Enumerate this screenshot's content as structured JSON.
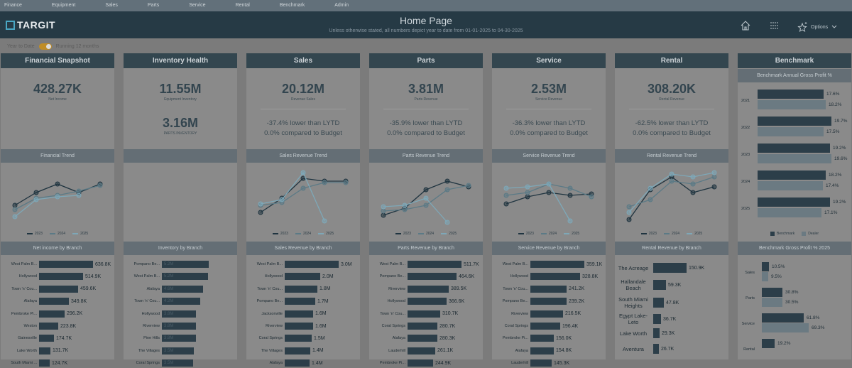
{
  "nav": [
    "Finance",
    "Equipment",
    "Sales",
    "Parts",
    "Service",
    "Rental",
    "Benchmark",
    "Admin"
  ],
  "header": {
    "logo": "TARGIT",
    "title": "Home Page",
    "subtitle": "Unless otherwise stated, all numbers depict year to date from 01-01-2025 to 04-30-2025",
    "options": "Options"
  },
  "mode": {
    "left": "Year to Date",
    "right": "Running 12 months"
  },
  "legend": [
    "2023",
    "2024",
    "2025"
  ],
  "columns": [
    {
      "title": "Financial Snapshot",
      "kpi": "428.27K",
      "kpi_label": "Net Income",
      "trend_title": "Financial Trend",
      "branch_title": "Net income by Branch",
      "branches": [
        [
          "West Palm B...",
          "636.8K",
          1.0
        ],
        [
          "Hollywood",
          "514.9K",
          0.81
        ],
        [
          "Town 'n' Cou...",
          "459.6K",
          0.72
        ],
        [
          "Alafaya",
          "349.8K",
          0.55
        ],
        [
          "Pembroke Pi...",
          "296.2K",
          0.47
        ],
        [
          "Weston",
          "223.8K",
          0.35
        ],
        [
          "Gainesville",
          "174.7K",
          0.27
        ],
        [
          "Lake Worth",
          "131.7K",
          0.21
        ],
        [
          "South Miami ...",
          "124.7K",
          0.2
        ]
      ]
    },
    {
      "title": "Inventory Health",
      "kpi": "11.55M",
      "kpi_label": "Equipment Inventory",
      "kpi2": "3.16M",
      "kpi2_label": "PARTS INVENTORY",
      "branch_title": "Inventory by Branch",
      "branches": [
        [
          "Pompano Be...",
          "5.2M",
          1.0
        ],
        [
          "West Palm B...",
          "5.2M",
          0.99
        ],
        [
          "Alafaya",
          "4.6M",
          0.88
        ],
        [
          "Town 'n' Cou...",
          "4.2M",
          0.82
        ],
        [
          "Hollywood",
          "3.8M",
          0.72
        ],
        [
          "Riverview",
          "3.8M",
          0.72
        ],
        [
          "Pine Hills",
          "3.8M",
          0.72
        ],
        [
          "The Villages",
          "3.5M",
          0.68
        ],
        [
          "Coral Springs",
          "3.5M",
          0.67
        ]
      ]
    },
    {
      "title": "Sales",
      "kpi": "20.12M",
      "kpi_label": "Revenue Sales",
      "cmp1": "-37.4% lower than LYTD",
      "cmp2": "0.0% compared to Budget",
      "trend_title": "Sales Revenue Trend",
      "branch_title": "Sales Revenue by Branch",
      "branches": [
        [
          "West Palm B...",
          "3.0M",
          1.0
        ],
        [
          "Hollywood",
          "2.0M",
          0.66
        ],
        [
          "Town 'n' Cou...",
          "1.8M",
          0.6
        ],
        [
          "Pompano Be...",
          "1.7M",
          0.57
        ],
        [
          "Jacksonville",
          "1.6M",
          0.53
        ],
        [
          "Riverview",
          "1.6M",
          0.52
        ],
        [
          "Coral Springs",
          "1.5M",
          0.5
        ],
        [
          "The Villages",
          "1.4M",
          0.47
        ],
        [
          "Alafaya",
          "1.4M",
          0.46
        ]
      ]
    },
    {
      "title": "Parts",
      "kpi": "3.81M",
      "kpi_label": "Parts Revenue",
      "cmp1": "-35.9% lower than LYTD",
      "cmp2": "0.0% compared to Budget",
      "trend_title": "Parts Revenue Trend",
      "branch_title": "Parts Revenue by Branch",
      "branches": [
        [
          "West Palm B...",
          "511.7K",
          1.0
        ],
        [
          "Pompano Be...",
          "464.6K",
          0.91
        ],
        [
          "Riverview",
          "389.5K",
          0.76
        ],
        [
          "Hollywood",
          "366.6K",
          0.72
        ],
        [
          "Town 'n' Cou...",
          "310.7K",
          0.61
        ],
        [
          "Coral Springs",
          "280.7K",
          0.55
        ],
        [
          "Alafaya",
          "280.3K",
          0.55
        ],
        [
          "Lauderhill",
          "261.1K",
          0.51
        ],
        [
          "Pembroke Pi...",
          "244.9K",
          0.48
        ]
      ]
    },
    {
      "title": "Service",
      "kpi": "2.53M",
      "kpi_label": "Service Revenue",
      "cmp1": "-36.3% lower than LYTD",
      "cmp2": "0.0% compared to Budget",
      "trend_title": "Service Revenue Trend",
      "branch_title": "Service Revenue by Branch",
      "branches": [
        [
          "West Palm B...",
          "359.1K",
          1.0
        ],
        [
          "Hollywood",
          "328.8K",
          0.92
        ],
        [
          "Town 'n' Cou...",
          "241.2K",
          0.67
        ],
        [
          "Pompano Be...",
          "239.2K",
          0.67
        ],
        [
          "Riverview",
          "216.5K",
          0.6
        ],
        [
          "Coral Springs",
          "196.4K",
          0.55
        ],
        [
          "Pembroke Pi...",
          "156.0K",
          0.43
        ],
        [
          "Alafaya",
          "154.8K",
          0.43
        ],
        [
          "Lauderhill",
          "145.3K",
          0.4
        ]
      ]
    },
    {
      "title": "Rental",
      "kpi": "308.20K",
      "kpi_label": "Rental Revenue",
      "cmp1": "-62.5% lower than LYTD",
      "cmp2": "0.0% compared to Budget",
      "trend_title": "Rental Revenue Trend",
      "branch_title": "Rental Revenue by Branch",
      "branches": [
        [
          "The Acreage",
          "150.9K",
          1.0
        ],
        [
          "Hallandale Beach",
          "59.3K",
          0.39
        ],
        [
          "South Miami Heights",
          "47.8K",
          0.32
        ],
        [
          "Egypt Lake-Leto",
          "36.7K",
          0.24
        ],
        [
          "Lake Worth",
          "29.3K",
          0.19
        ],
        [
          "Aventura",
          "26.7K",
          0.18
        ]
      ]
    }
  ],
  "benchmark": {
    "title": "Benchmark",
    "annual_title": "Benchmark Annual Gross Profit %",
    "years": [
      [
        "2021",
        "17.6%",
        17.6,
        "18.2%",
        18.2
      ],
      [
        "2022",
        "19.7%",
        19.7,
        "17.5%",
        17.5
      ],
      [
        "2023",
        "19.2%",
        19.2,
        "19.6%",
        19.6
      ],
      [
        "2024",
        "18.2%",
        18.2,
        "17.4%",
        17.4
      ],
      [
        "2025",
        "19.2%",
        19.2,
        "17.1%",
        17.1
      ]
    ],
    "legend": [
      "Benchmark",
      "Dealer"
    ],
    "gp_title": "Benchmark Gross Profit % 2025",
    "gp": [
      [
        "Sales",
        "10.5%",
        10.5,
        "9.5%",
        9.5
      ],
      [
        "Parts",
        "30.8%",
        30.8,
        "30.5%",
        30.5
      ],
      [
        "Service",
        "61.8%",
        61.8,
        "69.3%",
        69.3
      ],
      [
        "Rental",
        "19.2%",
        19.2,
        "",
        null
      ]
    ]
  },
  "colors": {
    "s2023": "#1f3440",
    "s2024": "#5b7a86",
    "s2025": "#7ea8b8",
    "bar": "#2c3e49",
    "dealer": "#6b7a82"
  }
}
